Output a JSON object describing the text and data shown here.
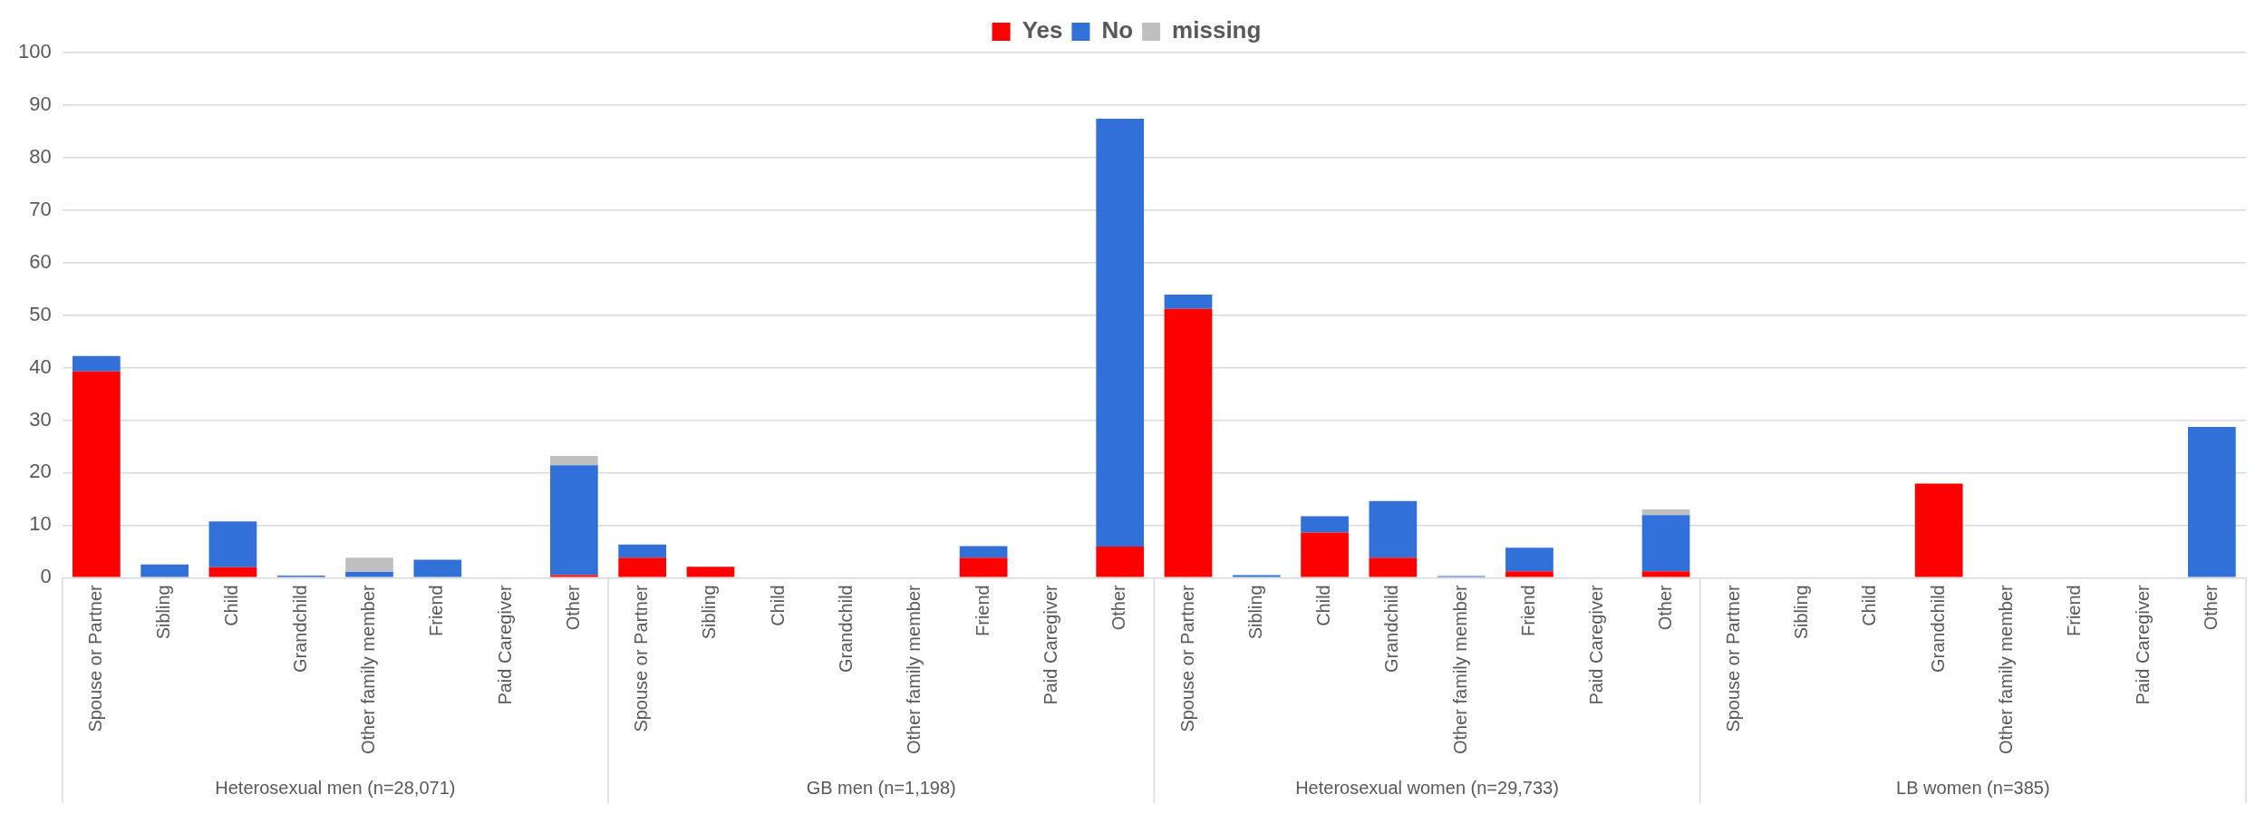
{
  "chart_data": {
    "type": "bar",
    "stacked": true,
    "categories": [
      "Spouse or Partner",
      "Sibling",
      "Child",
      "Grandchild",
      "Other family member",
      "Friend",
      "Paid Caregiver",
      "Other",
      "Spouse or Partner",
      "Sibling",
      "Child",
      "Grandchild",
      "Other family member",
      "Friend",
      "Paid Caregiver",
      "Other",
      "Spouse or Partner",
      "Sibling",
      "Child",
      "Grandchild",
      "Other family member",
      "Friend",
      "Paid Caregiver",
      "Other",
      "Spouse or Partner",
      "Sibling",
      "Child",
      "Grandchild",
      "Other family member",
      "Friend",
      "Paid Caregiver",
      "Other"
    ],
    "series": [
      {
        "name": "Yes",
        "color": "#ff0000",
        "values": [
          39.3,
          0,
          2.0,
          0,
          0,
          0,
          0,
          0.5,
          3.8,
          2.1,
          0,
          0,
          0,
          3.8,
          0,
          5.9,
          51.2,
          0,
          8.6,
          3.8,
          0,
          1.2,
          0,
          1.2,
          0,
          0,
          0,
          17.9,
          0,
          0,
          0,
          0
        ]
      },
      {
        "name": "No",
        "color": "#3070d8",
        "values": [
          2.9,
          2.5,
          8.7,
          0.4,
          1.1,
          3.4,
          0,
          20.9,
          2.5,
          0,
          0,
          0,
          0,
          2.2,
          0,
          81.5,
          2.7,
          0.5,
          3.1,
          10.8,
          0.3,
          4.5,
          0,
          10.7,
          0,
          0,
          0,
          0,
          0,
          0,
          0,
          28.7
        ]
      },
      {
        "name": "missing",
        "color": "#bfbfbf",
        "values": [
          0,
          0,
          0,
          0,
          2.7,
          0,
          0,
          1.8,
          0,
          0,
          0,
          0,
          0,
          0,
          0,
          0,
          0,
          0,
          0,
          0,
          0,
          0,
          0,
          1.1,
          0,
          0,
          0,
          0,
          0,
          0,
          0,
          0
        ]
      }
    ],
    "ylim": [
      0,
      100
    ],
    "yticks": [
      0,
      10,
      20,
      30,
      40,
      50,
      60,
      70,
      80,
      90,
      100
    ],
    "grid": "y",
    "legend": "top",
    "annotations": [
      "Heterosexual men (n=28,071)",
      "GB men (n=1,198)",
      "Heterosexual women (n=29,733)",
      "LB women (n=385)"
    ]
  }
}
